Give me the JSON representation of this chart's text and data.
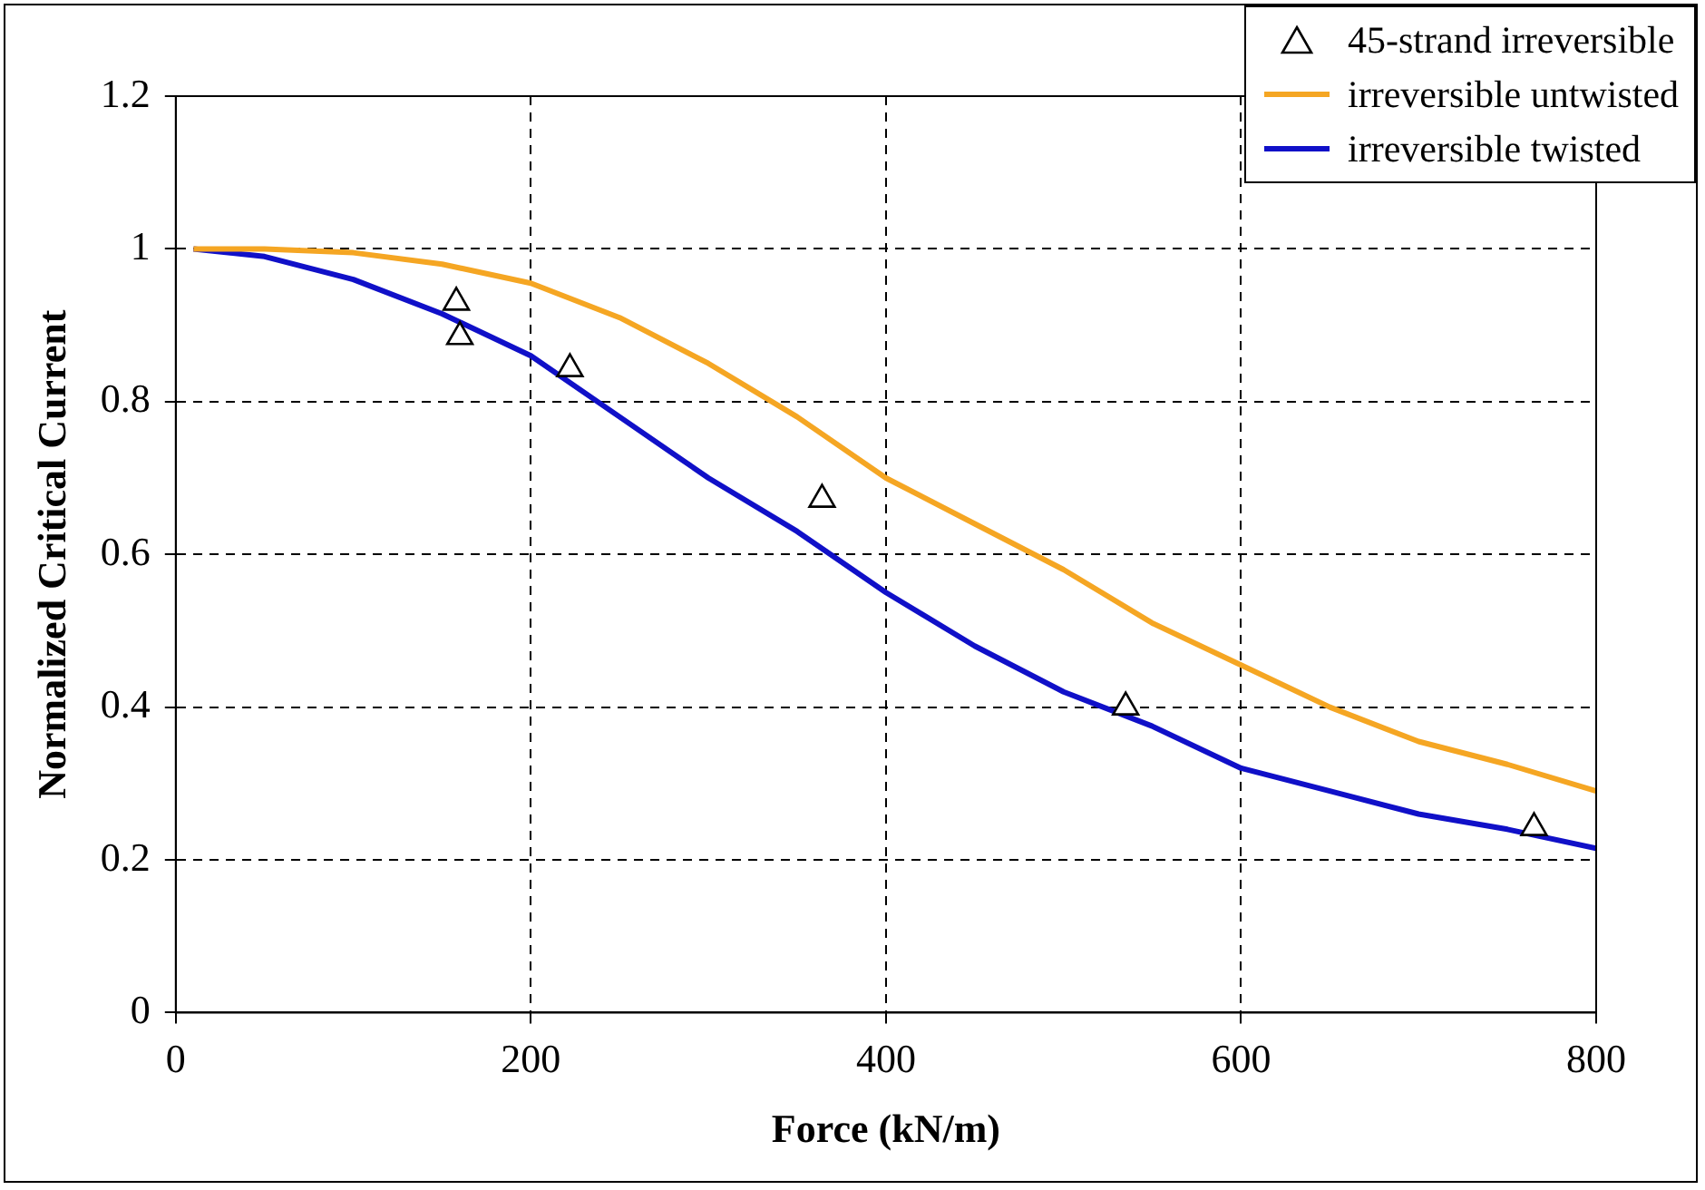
{
  "chart_data": {
    "type": "line",
    "xlabel": "Force (kN/m)",
    "ylabel": "Normalized Critical Current",
    "xlim": [
      0,
      800
    ],
    "xticks": [
      0,
      200,
      400,
      600,
      800
    ],
    "ylim": [
      0,
      1.2
    ],
    "yticks": [
      0,
      0.2,
      0.4,
      0.6,
      0.8,
      1,
      1.2
    ],
    "grid": true,
    "legend": "top right",
    "series": [
      {
        "name": "45-strand irreversible",
        "type": "scatter",
        "marker": "triangle",
        "color": "#000000",
        "x": [
          158,
          160,
          222,
          364,
          535,
          765
        ],
        "values": [
          0.93,
          0.885,
          0.843,
          0.672,
          0.4,
          0.242
        ]
      },
      {
        "name": "irreversible untwisted",
        "marker": "none",
        "color": "#f5a623",
        "x": [
          10,
          50,
          100,
          150,
          200,
          250,
          300,
          350,
          400,
          450,
          500,
          550,
          600,
          650,
          700,
          750,
          800
        ],
        "values": [
          1,
          1,
          0.995,
          0.98,
          0.955,
          0.91,
          0.85,
          0.78,
          0.7,
          0.64,
          0.58,
          0.51,
          0.455,
          0.4,
          0.355,
          0.325,
          0.29
        ]
      },
      {
        "name": "irreversible twisted",
        "marker": "none",
        "color": "#1010c8",
        "x": [
          10,
          50,
          100,
          150,
          200,
          250,
          300,
          350,
          400,
          450,
          500,
          550,
          600,
          650,
          700,
          750,
          800
        ],
        "values": [
          1,
          0.99,
          0.96,
          0.915,
          0.86,
          0.78,
          0.7,
          0.63,
          0.55,
          0.48,
          0.42,
          0.375,
          0.32,
          0.29,
          0.26,
          0.24,
          0.215
        ]
      }
    ]
  }
}
